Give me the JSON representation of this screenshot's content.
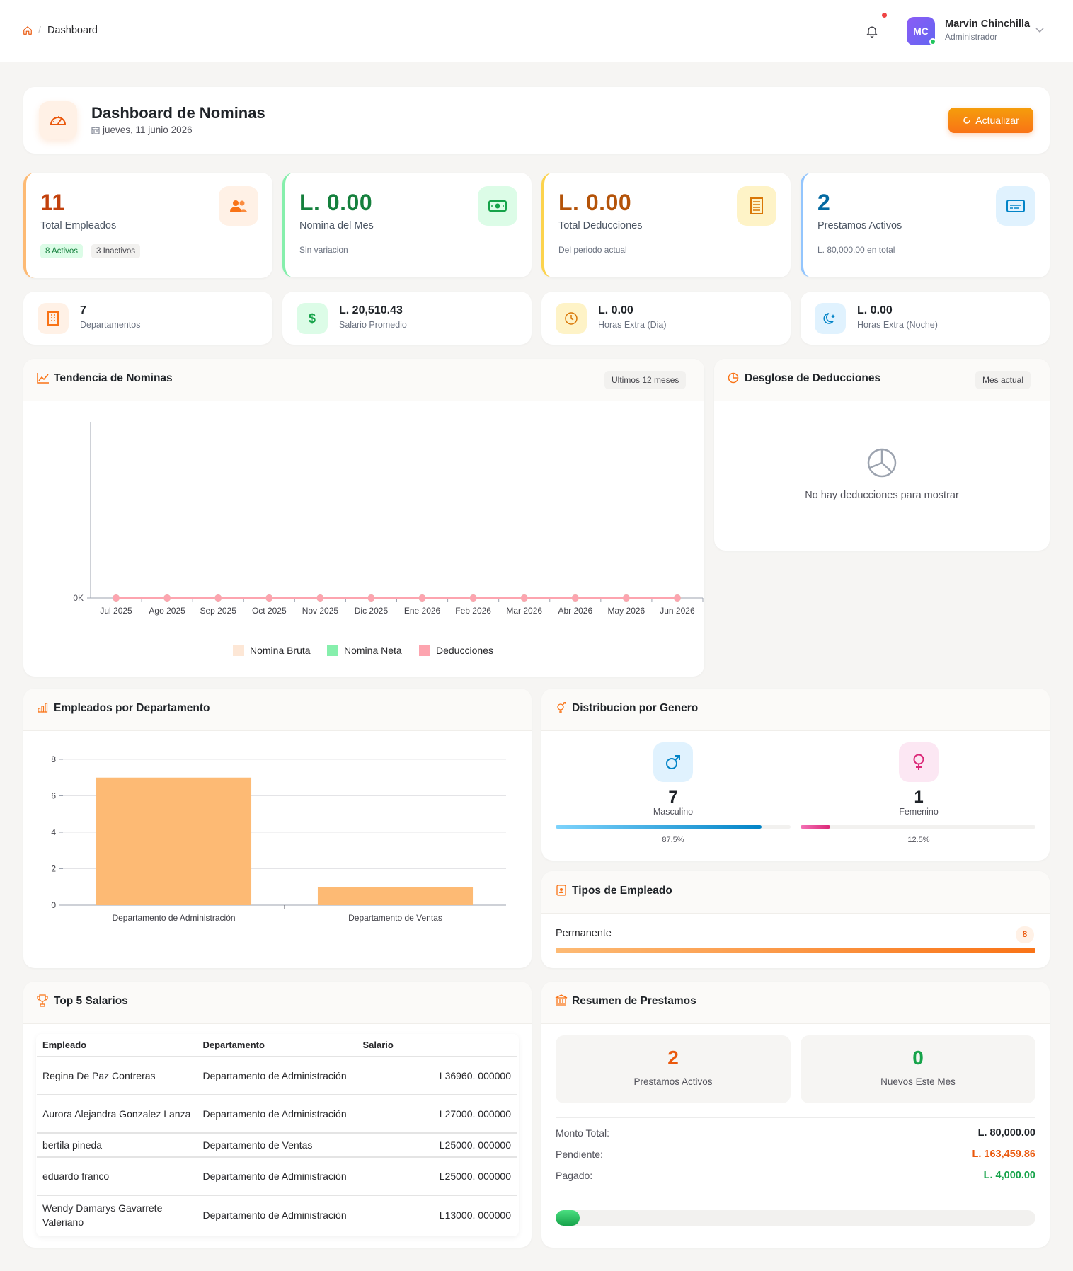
{
  "topbar": {
    "breadcrumb_home_icon": "home-icon",
    "breadcrumb_sep": "/",
    "breadcrumb_current": "Dashboard",
    "user_initials": "MC",
    "user_name": "Marvin Chinchilla",
    "user_role": "Administrador"
  },
  "header": {
    "title": "Dashboard de Nominas",
    "date": "jueves, 11 junio 2026",
    "refresh_label": "Actualizar"
  },
  "stats": [
    {
      "value": "11",
      "label": "Total Empleados",
      "badge_active": "8 Activos",
      "badge_inactive": "3 Inactivos",
      "color": "#c2410c"
    },
    {
      "value": "L. 0.00",
      "label": "Nomina del Mes",
      "sub": "Sin variacion",
      "color": "#15803d"
    },
    {
      "value": "L. 0.00",
      "label": "Total Deducciones",
      "sub": "Del periodo actual",
      "color": "#b45309"
    },
    {
      "value": "2",
      "label": "Prestamos Activos",
      "sub": "L. 80,000.00 en total",
      "color": "#0369a1"
    }
  ],
  "mini": [
    {
      "value": "7",
      "label": "Departamentos"
    },
    {
      "value": "L. 20,510.43",
      "label": "Salario Promedio"
    },
    {
      "value": "L. 0.00",
      "label": "Horas Extra (Dia)"
    },
    {
      "value": "L. 0.00",
      "label": "Horas Extra (Noche)"
    }
  ],
  "trend": {
    "title": "Tendencia de Nominas",
    "pill": "Ultimos 12 meses",
    "ytick": "0K",
    "legend": [
      "Nomina Bruta",
      "Nomina Neta",
      "Deducciones"
    ]
  },
  "deductions": {
    "title": "Desglose de Deducciones",
    "pill": "Mes actual",
    "empty": "No hay deducciones para mostrar"
  },
  "dept": {
    "title": "Empleados por Departamento"
  },
  "gender": {
    "title": "Distribucion por Genero",
    "male_value": "7",
    "male_label": "Masculino",
    "male_pct": "87.5%",
    "female_value": "1",
    "female_label": "Femenino",
    "female_pct": "12.5%"
  },
  "types": {
    "title": "Tipos de Empleado",
    "label": "Permanente",
    "count": "8"
  },
  "top5": {
    "title": "Top 5 Salarios",
    "headers": [
      "Empleado",
      "Departamento",
      "Salario"
    ],
    "rows": [
      [
        "Regina De Paz Contreras",
        "Departamento de Administración",
        "L36960. 000000"
      ],
      [
        "Aurora Alejandra Gonzalez Lanza",
        "Departamento de Administración",
        "L27000. 000000"
      ],
      [
        "bertila pineda",
        "Departamento de Ventas",
        "L25000. 000000"
      ],
      [
        "eduardo franco",
        "Departamento de Administración",
        "L25000. 000000"
      ],
      [
        "Wendy Damarys Gavarrete Valeriano",
        "Departamento de Administración",
        "L13000. 000000"
      ]
    ]
  },
  "loans": {
    "title": "Resumen de Prestamos",
    "active_value": "2",
    "active_label": "Prestamos Activos",
    "new_value": "0",
    "new_label": "Nuevos Este Mes",
    "total_label": "Monto Total:",
    "total_value": "L. 80,000.00",
    "pending_label": "Pendiente:",
    "pending_value": "L. 163,459.86",
    "paid_label": "Pagado:",
    "paid_value": "L. 4,000.00",
    "paid_fraction": 0.05
  },
  "chart_data": [
    {
      "type": "line",
      "title": "Tendencia de Nominas",
      "categories": [
        "Jul 2025",
        "Ago 2025",
        "Sep 2025",
        "Oct 2025",
        "Nov 2025",
        "Dic 2025",
        "Ene 2026",
        "Feb 2026",
        "Mar 2026",
        "Abr 2026",
        "May 2026",
        "Jun 2026"
      ],
      "series": [
        {
          "name": "Nomina Bruta",
          "values": [
            0,
            0,
            0,
            0,
            0,
            0,
            0,
            0,
            0,
            0,
            0,
            0
          ],
          "color": "#fde7d6"
        },
        {
          "name": "Nomina Neta",
          "values": [
            0,
            0,
            0,
            0,
            0,
            0,
            0,
            0,
            0,
            0,
            0,
            0
          ],
          "color": "#86efac"
        },
        {
          "name": "Deducciones",
          "values": [
            0,
            0,
            0,
            0,
            0,
            0,
            0,
            0,
            0,
            0,
            0,
            0
          ],
          "color": "#fda4af"
        }
      ],
      "yticks": [
        "0K"
      ],
      "legend": "bottom"
    },
    {
      "type": "bar",
      "title": "Empleados por Departamento",
      "categories": [
        "Departamento de Administración",
        "Departamento de Ventas"
      ],
      "values": [
        7,
        1
      ],
      "ylim": [
        0,
        8
      ],
      "yticks": [
        0,
        2,
        4,
        6,
        8
      ],
      "color": "#fdba74",
      "grid": true
    }
  ]
}
